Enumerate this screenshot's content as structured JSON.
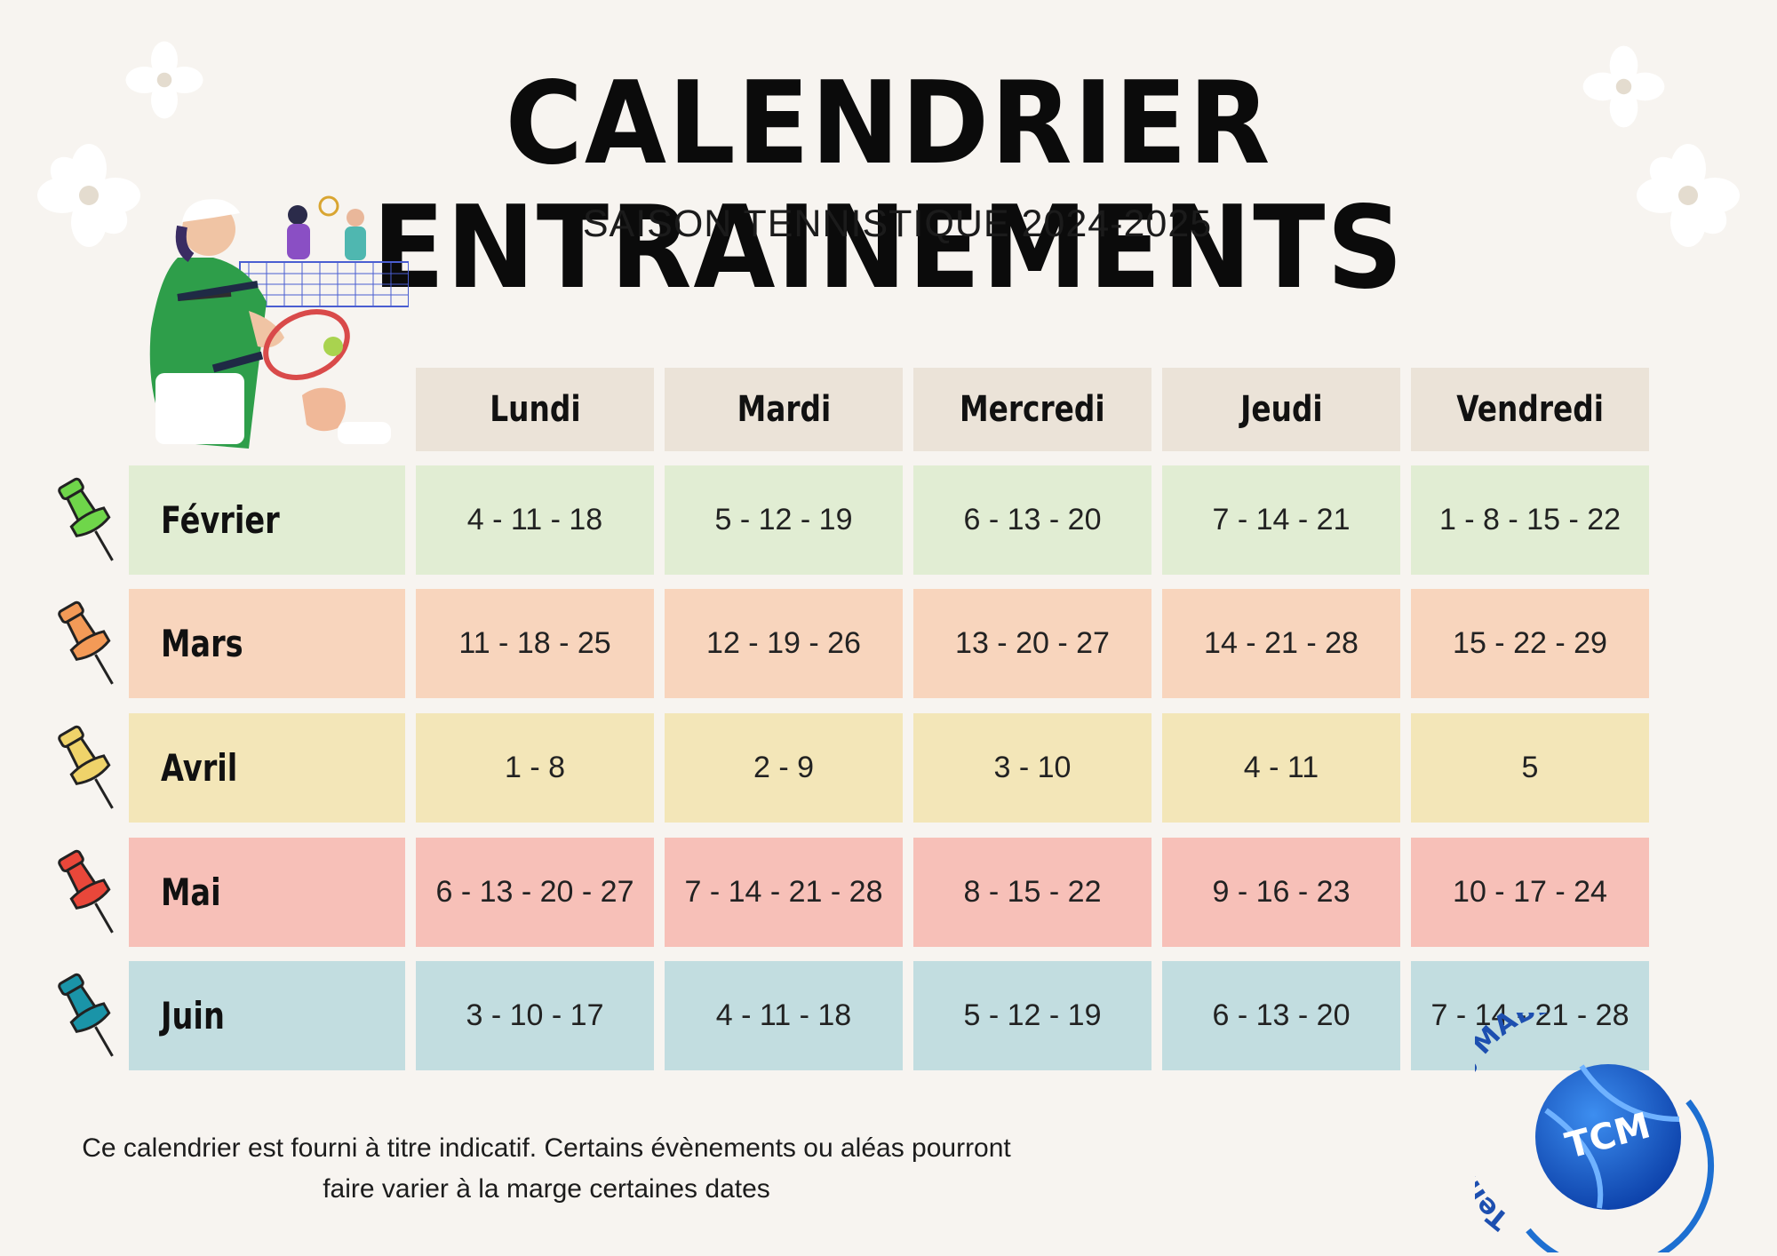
{
  "header": {
    "title": "CALENDRIER ENTRAINEMENTS",
    "subtitle": "SAISON TENNISTIQUE 2024-2025"
  },
  "table": {
    "columns": [
      "Lundi",
      "Mardi",
      "Mercredi",
      "Jeudi",
      "Vendredi"
    ],
    "rows": [
      {
        "month": "Février",
        "color": "#e1edd3",
        "pin_color": "#6fd64a",
        "cells": [
          "4 - 11 - 18",
          "5 - 12 - 19",
          "6 - 13 - 20",
          "7 - 14 - 21",
          "1 - 8 - 15 - 22"
        ]
      },
      {
        "month": "Mars",
        "color": "#f8d5bd",
        "pin_color": "#f39a57",
        "cells": [
          "11 - 18 - 25",
          "12 - 19 - 26",
          "13 - 20 - 27",
          "14 - 21 - 28",
          "15 - 22 - 29"
        ]
      },
      {
        "month": "Avril",
        "color": "#f3e6b8",
        "pin_color": "#efd36a",
        "cells": [
          "1 - 8",
          "2 - 9",
          "3 - 10",
          "4 - 11",
          "5"
        ]
      },
      {
        "month": "Mai",
        "color": "#f7c0b8",
        "pin_color": "#e9473a",
        "cells": [
          "6 - 13 - 20 - 27",
          "7 - 14 - 21 - 28",
          "8 - 15 - 22",
          "9 - 16 - 23",
          "10 - 17 - 24"
        ]
      },
      {
        "month": "Juin",
        "color": "#c2dde0",
        "pin_color": "#1a94a8",
        "cells": [
          "3 - 10 - 17",
          "4 - 11 - 18",
          "5 - 12 - 19",
          "6 - 13 - 20",
          "7 - 14 - 21 - 28"
        ]
      }
    ],
    "header_color": "#ebe3d8"
  },
  "footer": {
    "note_line1": "Ce calendrier est fourni à titre indicatif. Certains évènements ou aléas pourront",
    "note_line2": "faire varier à la marge certaines dates"
  },
  "logo": {
    "arc_text": "Tennis Club MABLY",
    "ball_text": "TCM",
    "color": "#1d6fd1"
  },
  "illustration": "tennis-player-illustration"
}
